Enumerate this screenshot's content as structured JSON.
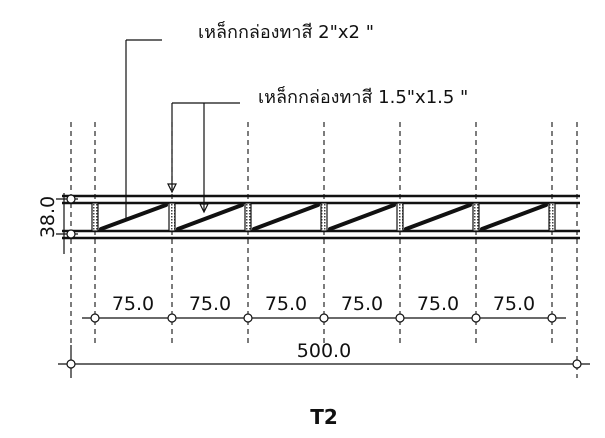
{
  "notes": {
    "top_chord_label": "เหล็กกล่องทาสี  2\"x2 \"",
    "web_label": "เหล็กกล่องทาสี  1.5\"x1.5 \""
  },
  "dimensions": {
    "depth": "38.0",
    "panels": [
      "75.0",
      "75.0",
      "75.0",
      "75.0",
      "75.0",
      "75.0"
    ],
    "overall": "500.0"
  },
  "title": "T2"
}
